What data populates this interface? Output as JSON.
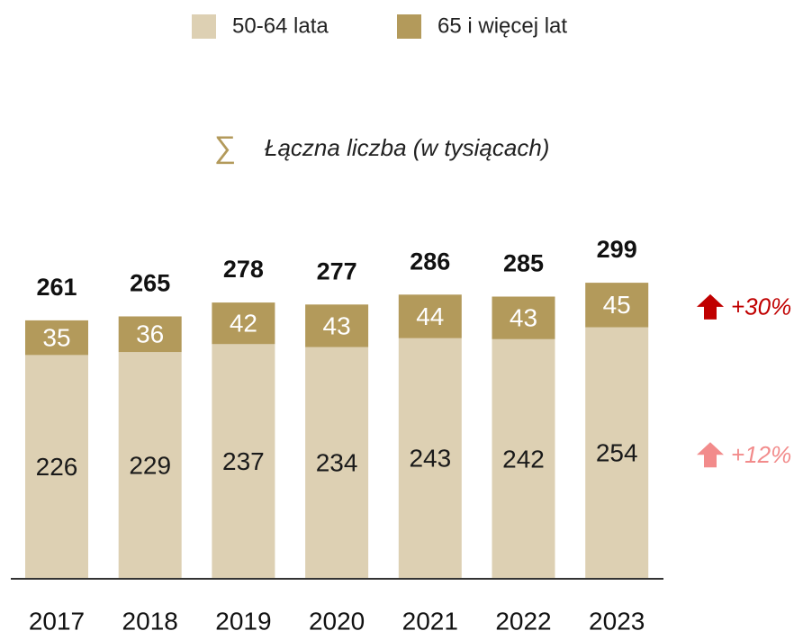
{
  "chart_data": {
    "type": "stacked_bar",
    "subtitle_symbol": "∑",
    "subtitle": "Łączna liczba (w tysiącach)",
    "categories": [
      "2017",
      "2018",
      "2019",
      "2020",
      "2021",
      "2022",
      "2023"
    ],
    "series": [
      {
        "name": "50-64 lata",
        "color": "#ddd0b3",
        "values": [
          226,
          229,
          237,
          234,
          243,
          242,
          254
        ]
      },
      {
        "name": "65 i więcej lat",
        "color": "#b39a5b",
        "values": [
          35,
          36,
          42,
          43,
          44,
          43,
          45
        ]
      }
    ],
    "totals": [
      261,
      265,
      278,
      277,
      286,
      285,
      299
    ],
    "annotations": [
      {
        "text": "+30%",
        "color": "#c00000"
      },
      {
        "text": "+12%",
        "color": "#f28b8b"
      }
    ]
  }
}
